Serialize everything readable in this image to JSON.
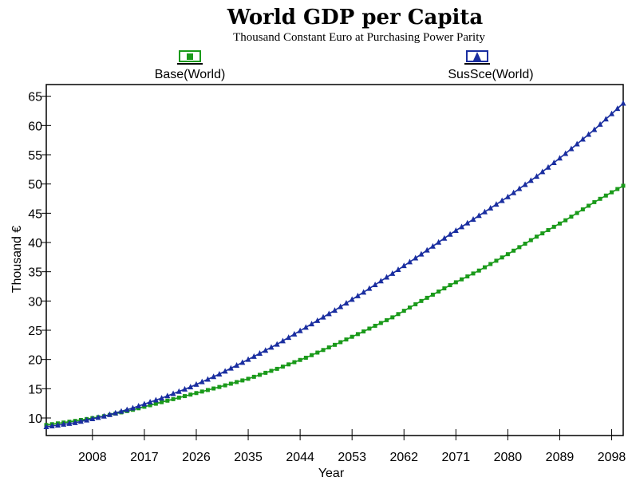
{
  "chart_data": {
    "type": "line",
    "title": "World GDP per Capita",
    "subtitle": "Thousand Constant Euro at Purchasing Power Parity",
    "xlabel": "Year",
    "ylabel": "Thousand €",
    "xlim": [
      2000,
      2100
    ],
    "ylim": [
      7,
      67
    ],
    "x_ticks": [
      2008,
      2017,
      2026,
      2035,
      2044,
      2053,
      2062,
      2071,
      2080,
      2089,
      2098
    ],
    "y_ticks": [
      10,
      15,
      20,
      25,
      30,
      35,
      40,
      45,
      50,
      55,
      60,
      65
    ],
    "grid": false,
    "legend_position": "top",
    "x": [
      2000,
      2005,
      2010,
      2015,
      2020,
      2025,
      2030,
      2035,
      2040,
      2045,
      2050,
      2055,
      2060,
      2065,
      2070,
      2075,
      2080,
      2085,
      2090,
      2095,
      2100
    ],
    "series": [
      {
        "name": "Base(World)",
        "color": "#1a9a1a",
        "marker": "square",
        "values": [
          8.8,
          9.5,
          10.3,
          11.4,
          12.7,
          14.0,
          15.3,
          16.7,
          18.4,
          20.3,
          22.5,
          24.8,
          27.2,
          30.0,
          32.7,
          35.2,
          38.0,
          41.0,
          43.8,
          46.9,
          49.7
        ]
      },
      {
        "name": "SusSce(World)",
        "color": "#1a2ea0",
        "marker": "triangle",
        "values": [
          8.5,
          9.2,
          10.3,
          11.7,
          13.4,
          15.3,
          17.5,
          20.0,
          22.6,
          25.5,
          28.4,
          31.5,
          34.7,
          38.0,
          41.4,
          44.6,
          47.8,
          51.3,
          55.2,
          59.3,
          63.8
        ]
      }
    ]
  }
}
